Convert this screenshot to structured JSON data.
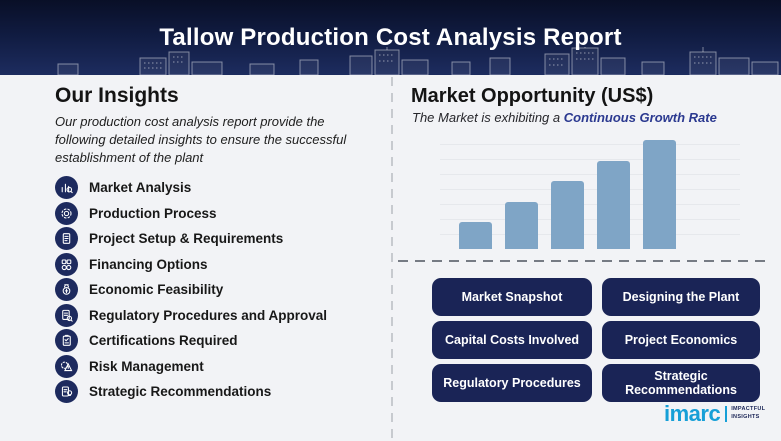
{
  "header": {
    "title": "Tallow Production Cost Analysis Report"
  },
  "insights": {
    "heading": "Our Insights",
    "description": "Our production cost analysis report provide the following detailed insights to ensure the successful establishment of the plant",
    "items": [
      {
        "label": "Market Analysis",
        "icon": "bar-chart-magnifier-icon"
      },
      {
        "label": "Production Process",
        "icon": "gear-icon"
      },
      {
        "label": "Project Setup & Requirements",
        "icon": "document-icon"
      },
      {
        "label": "Financing Options",
        "icon": "coins-icon"
      },
      {
        "label": "Economic Feasibility",
        "icon": "money-bag-icon"
      },
      {
        "label": "Regulatory Procedures and Approval",
        "icon": "document-magnifier-icon"
      },
      {
        "label": "Certifications Required",
        "icon": "certificate-icon"
      },
      {
        "label": "Risk Management",
        "icon": "warning-gear-icon"
      },
      {
        "label": "Strategic Recommendations",
        "icon": "lightbulb-document-icon"
      }
    ]
  },
  "market": {
    "heading": "Market Opportunity (US$)",
    "subtitle_prefix": "The Market is exhibiting a ",
    "subtitle_highlight": "Continuous Growth Rate",
    "buttons": [
      "Market Snapshot",
      "Designing the Plant",
      "Capital Costs Involved",
      "Project Economics",
      "Regulatory Procedures",
      "Strategic Recommendations"
    ]
  },
  "chart_data": {
    "type": "bar",
    "title": "Market Opportunity (US$)",
    "subtitle": "The Market is exhibiting a Continuous Growth Rate",
    "categories": [
      "",
      "",
      "",
      "",
      ""
    ],
    "values": [
      25,
      43,
      62,
      81,
      100
    ],
    "xlabel": "",
    "ylabel": "",
    "ylim": [
      0,
      100
    ],
    "grid": true,
    "legend": false,
    "bar_color": "#7fa5c6"
  },
  "logo": {
    "brand": "imarc",
    "tagline": "IMPACTFUL INSIGHTS"
  },
  "colors": {
    "header_navy": "#101b40",
    "button_navy": "#1a2456",
    "icon_navy": "#1d2a5e",
    "highlight_navy": "#2b3990",
    "bar_blue": "#7fa5c6",
    "brand_blue": "#169fd7",
    "background": "#f2f3f6"
  }
}
